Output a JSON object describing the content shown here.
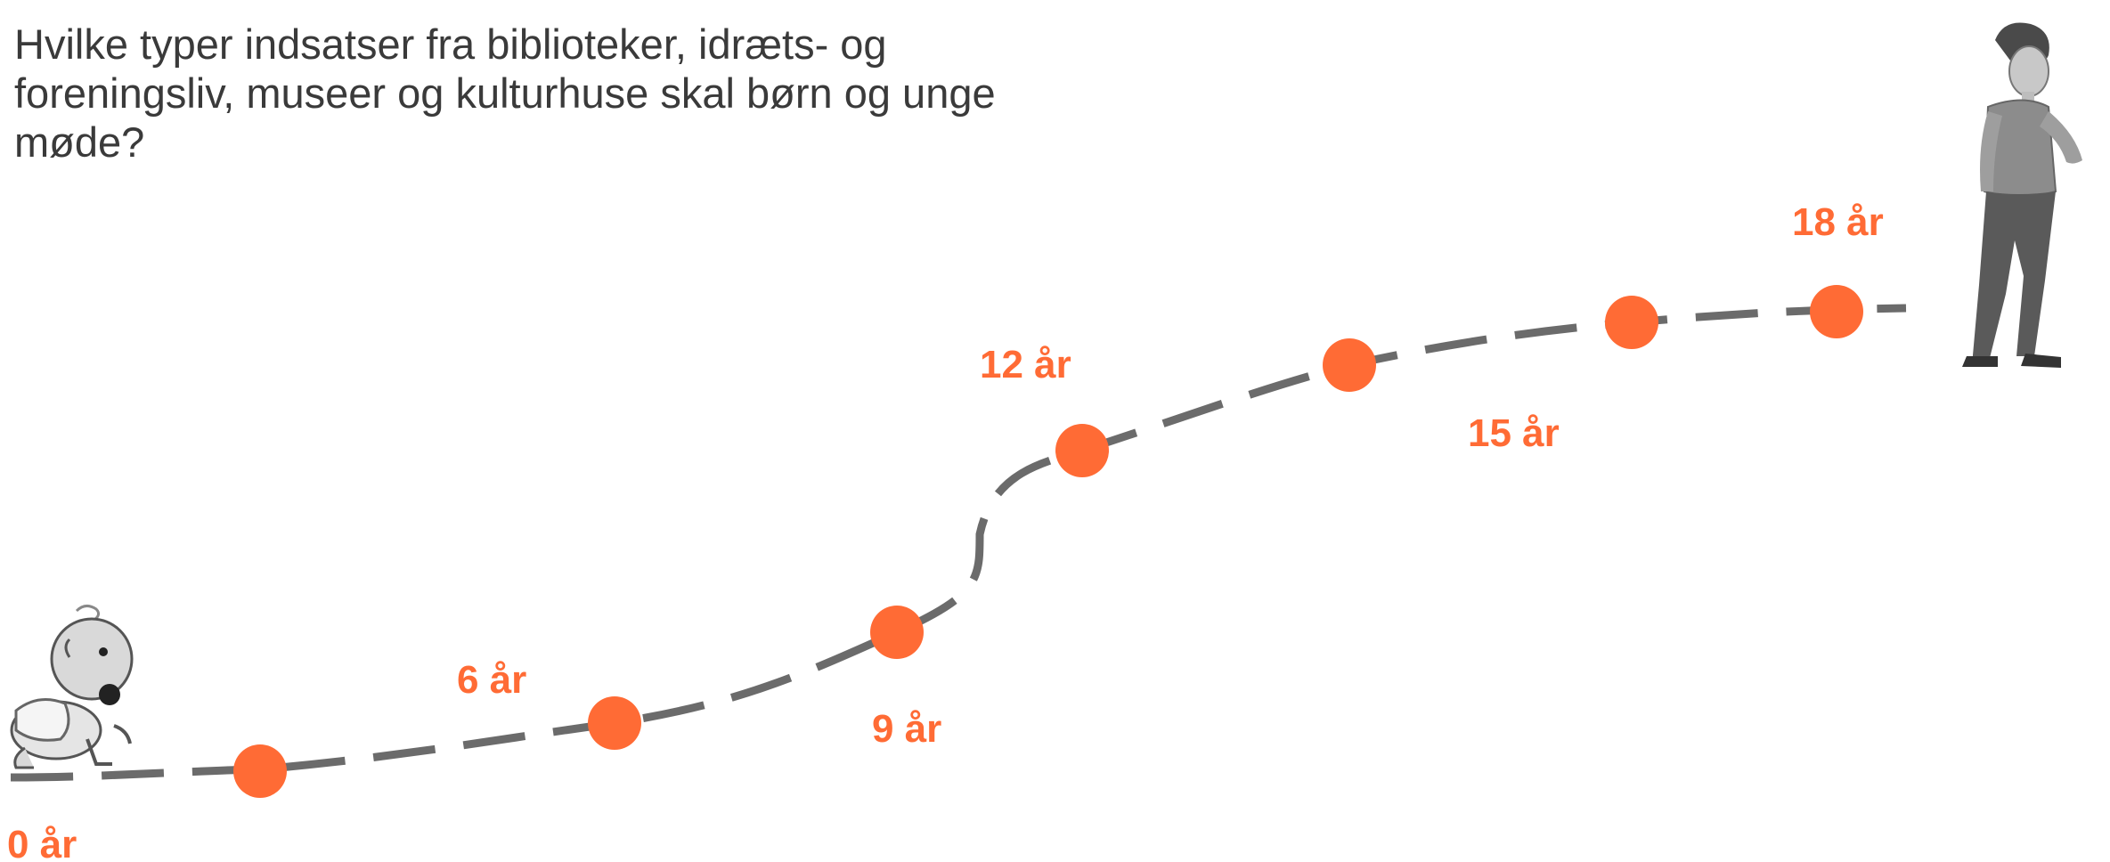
{
  "question": "Hvilke typer indsatser fra biblioteker, idræts- og\nforeningsliv, museer og kulturhuse skal børn og unge\nmøde?",
  "colors": {
    "accent": "#FF6B35",
    "path": "#6b6b6b",
    "text": "#3a3a3a"
  },
  "figures": {
    "start": "crawling-baby",
    "end": "walking-teenager"
  },
  "milestones": [
    {
      "label": "0 år"
    },
    {
      "label": "6 år"
    },
    {
      "label": "9 år"
    },
    {
      "label": "12 år"
    },
    {
      "label": "15 år"
    },
    {
      "label": "18 år"
    }
  ]
}
